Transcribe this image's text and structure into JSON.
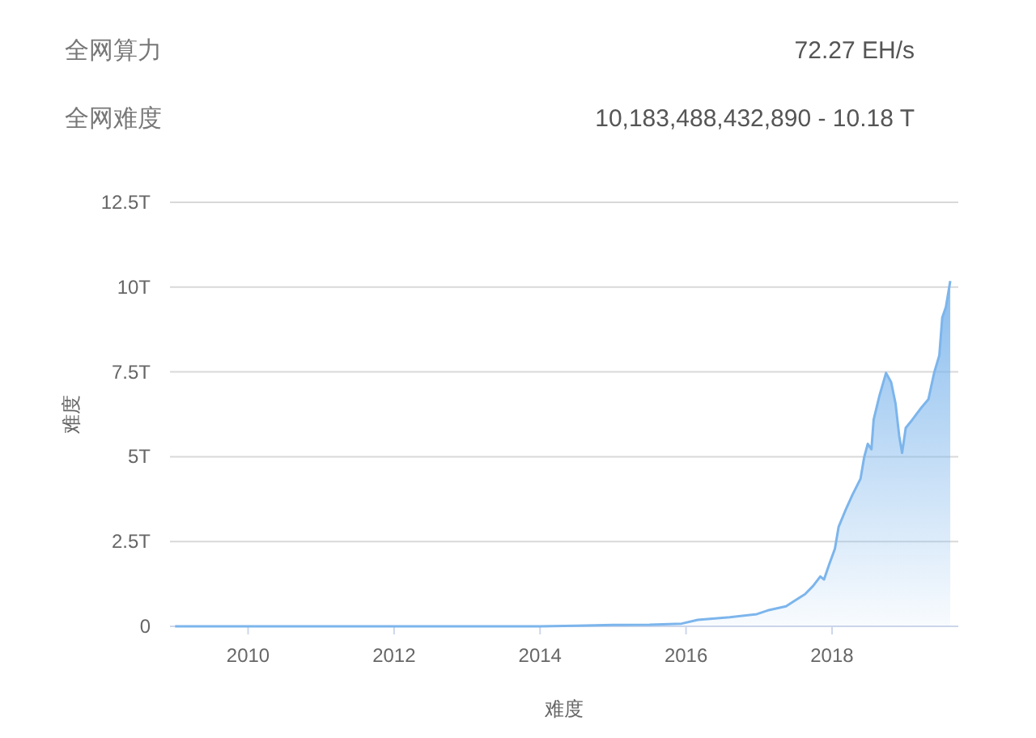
{
  "chart_data": {
    "type": "area",
    "annotations": [
      "全网算力",
      "72.27 EH/s",
      "全网难度",
      "10,183,488,432,890 - 10.18 T"
    ],
    "xlabel": "难度",
    "ylabel": "难度",
    "xlim": [
      2008.93,
      2019.73
    ],
    "xticks": [
      2010,
      2012,
      2014,
      2016,
      2018
    ],
    "ylim": [
      0,
      12.5
    ],
    "yticks": [
      0,
      {
        "value": 2.5,
        "label": "2.5T"
      },
      {
        "value": 5,
        "label": "5T"
      },
      {
        "value": 7.5,
        "label": "7.5T"
      },
      {
        "value": 10,
        "label": "10T"
      },
      {
        "value": 12.5,
        "label": "12.5T"
      }
    ],
    "grid": "y",
    "series": [
      {
        "color": "#7cb5ec",
        "x": [
          2009.0,
          2011.0,
          2013.0,
          2014.0,
          2014.5,
          2015.0,
          2015.5,
          2015.94,
          2016.16,
          2016.6,
          2016.97,
          2017.12,
          2017.37,
          2017.49,
          2017.63,
          2017.74,
          2017.84,
          2017.89,
          2017.96,
          2018.04,
          2018.09,
          2018.18,
          2018.28,
          2018.39,
          2018.44,
          2018.49,
          2018.54,
          2018.57,
          2018.65,
          2018.74,
          2018.81,
          2018.87,
          2018.92,
          2018.96,
          2019.01,
          2019.1,
          2019.21,
          2019.32,
          2019.4,
          2019.47,
          2019.51,
          2019.56,
          2019.62
        ],
        "values": [
          0,
          0,
          0,
          0,
          0.02,
          0.04,
          0.05,
          0.08,
          0.19,
          0.27,
          0.36,
          0.47,
          0.59,
          0.76,
          0.95,
          1.19,
          1.47,
          1.38,
          1.82,
          2.29,
          2.93,
          3.4,
          3.88,
          4.35,
          4.98,
          5.38,
          5.22,
          6.09,
          6.8,
          7.47,
          7.2,
          6.57,
          5.62,
          5.11,
          5.85,
          6.09,
          6.41,
          6.69,
          7.48,
          7.99,
          9.1,
          9.41,
          10.18
        ]
      }
    ]
  }
}
